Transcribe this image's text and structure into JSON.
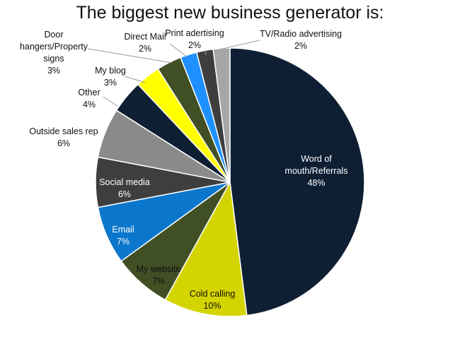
{
  "chart_data": {
    "type": "pie",
    "title": "The biggest new business generator is:",
    "slices": [
      {
        "name": "Word of mouth/Referrals",
        "label_lines": [
          "Word of",
          "mouth/Referrals"
        ],
        "value": 48,
        "value_label": "48%",
        "color": "#0e1e33"
      },
      {
        "name": "Cold calling",
        "label_lines": [
          "Cold calling"
        ],
        "value": 10,
        "value_label": "10%",
        "color": "#d4d400"
      },
      {
        "name": "My website",
        "label_lines": [
          "My website"
        ],
        "value": 7,
        "value_label": "7%",
        "color": "#414f24"
      },
      {
        "name": "Email",
        "label_lines": [
          "Email"
        ],
        "value": 7,
        "value_label": "7%",
        "color": "#0b77cc"
      },
      {
        "name": "Social media",
        "label_lines": [
          "Social media"
        ],
        "value": 6,
        "value_label": "6%",
        "color": "#3e3e3e"
      },
      {
        "name": "Outside sales rep",
        "label_lines": [
          "Outside sales rep"
        ],
        "value": 6,
        "value_label": "6%",
        "color": "#8a8a8a"
      },
      {
        "name": "Other",
        "label_lines": [
          "Other"
        ],
        "value": 4,
        "value_label": "4%",
        "color": "#0e1e33"
      },
      {
        "name": "My blog",
        "label_lines": [
          "My blog"
        ],
        "value": 3,
        "value_label": "3%",
        "color": "#ffff00"
      },
      {
        "name": "Door hangers/Property signs",
        "label_lines": [
          "Door",
          "hangers/Property",
          "signs"
        ],
        "value": 3,
        "value_label": "3%",
        "color": "#414f24"
      },
      {
        "name": "Direct Mail",
        "label_lines": [
          "Direct Mail"
        ],
        "value": 2,
        "value_label": "2%",
        "color": "#1e90ff"
      },
      {
        "name": "Print adertising",
        "label_lines": [
          "Print adertising"
        ],
        "value": 2,
        "value_label": "2%",
        "color": "#3e3e3e"
      },
      {
        "name": "TV/Radio advertising",
        "label_lines": [
          "TV/Radio advertising"
        ],
        "value": 2,
        "value_label": "2%",
        "color": "#a6a6a6"
      }
    ]
  }
}
